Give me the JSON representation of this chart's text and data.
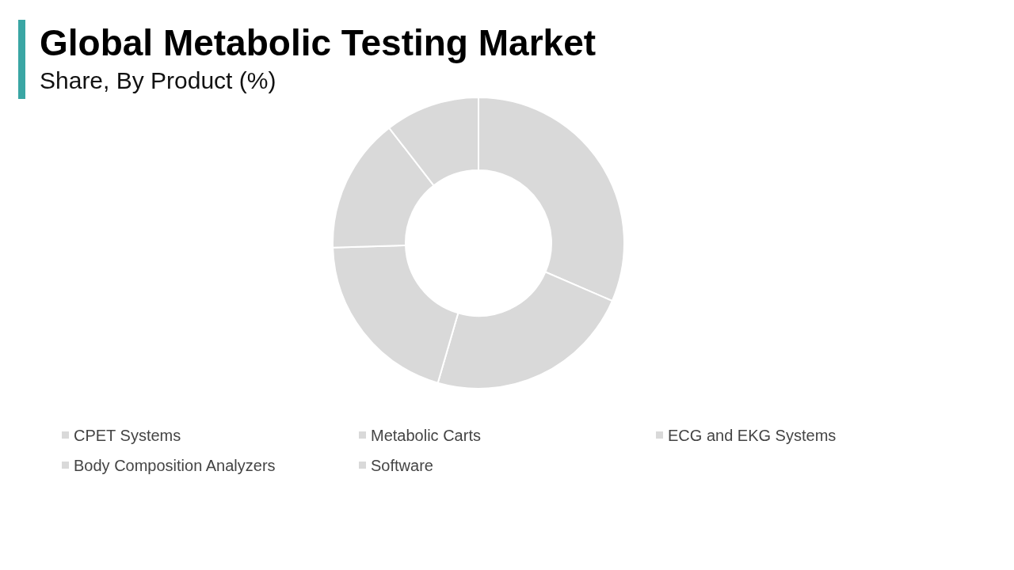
{
  "chart_data": {
    "type": "donut",
    "title": "Global Metabolic Testing Market",
    "subtitle": "Share, By Product (%)",
    "categories": [
      "CPET Systems",
      "Metabolic Carts",
      "ECG and EKG Systems",
      "Body Composition Analyzers",
      "Software"
    ],
    "values": [
      31.5,
      23,
      20,
      15,
      10.5
    ],
    "colors": [
      "#d9d9d9",
      "#d9d9d9",
      "#d9d9d9",
      "#d9d9d9",
      "#d9d9d9"
    ],
    "legend": "bottom"
  }
}
